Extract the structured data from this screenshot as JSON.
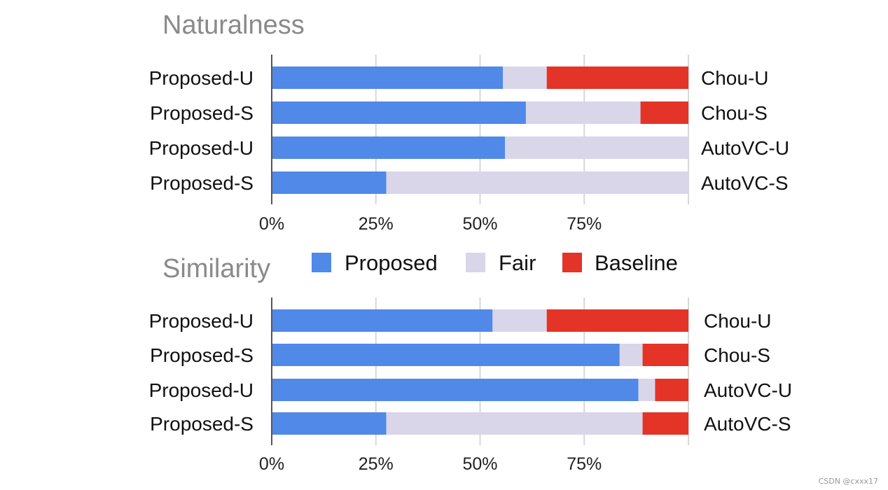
{
  "chart_data": [
    {
      "type": "bar",
      "orientation": "horizontal",
      "stacked": true,
      "title": "Naturalness",
      "left_labels": [
        "Proposed-U",
        "Proposed-S",
        "Proposed-U",
        "Proposed-S"
      ],
      "right_labels": [
        "Chou-U",
        "Chou-S",
        "AutoVC-U",
        "AutoVC-S"
      ],
      "series": [
        {
          "name": "Proposed",
          "values": [
            55.5,
            61,
            56,
            27.5
          ]
        },
        {
          "name": "Fair",
          "values": [
            10.5,
            27.5,
            44,
            72.5
          ]
        },
        {
          "name": "Baseline",
          "values": [
            34,
            11.5,
            0,
            0
          ]
        }
      ],
      "xticks": [
        "0%",
        "25%",
        "50%",
        "75%"
      ],
      "xlim": [
        0,
        100
      ],
      "grid": true
    },
    {
      "type": "bar",
      "orientation": "horizontal",
      "stacked": true,
      "title": "Similarity",
      "left_labels": [
        "Proposed-U",
        "Proposed-S",
        "Proposed-U",
        "Proposed-S"
      ],
      "right_labels": [
        "Chou-U",
        "Chou-S",
        "AutoVC-U",
        "AutoVC-S"
      ],
      "series": [
        {
          "name": "Proposed",
          "values": [
            53,
            83.5,
            88,
            27.5
          ]
        },
        {
          "name": "Fair",
          "values": [
            13,
            5.5,
            4,
            61.5
          ]
        },
        {
          "name": "Baseline",
          "values": [
            34,
            11,
            8,
            11
          ]
        }
      ],
      "xticks": [
        "0%",
        "25%",
        "50%",
        "75%"
      ],
      "xlim": [
        0,
        100
      ],
      "grid": true
    }
  ],
  "legend": {
    "position": "between-panels",
    "items": [
      {
        "label": "Proposed",
        "color": "#5089E8"
      },
      {
        "label": "Fair",
        "color": "#D9D6E9"
      },
      {
        "label": "Baseline",
        "color": "#E33427"
      }
    ]
  },
  "colors": {
    "Proposed": "#5089E8",
    "Fair": "#D9D6E9",
    "Baseline": "#E33427"
  },
  "watermark": "CSDN @cxxx17"
}
